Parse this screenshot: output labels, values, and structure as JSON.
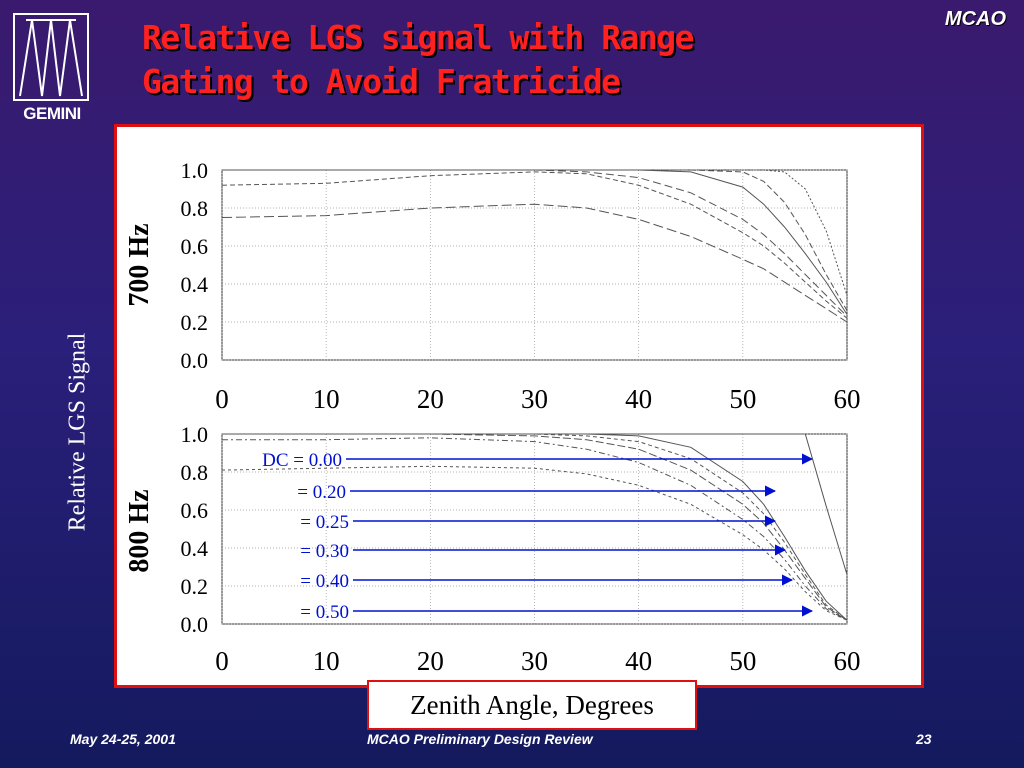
{
  "slide": {
    "title_line1": "Relative LGS signal with Range",
    "title_line2": "Gating to Avoid Fratricide",
    "corner_tag": "MCAO",
    "logo_text": "GEMINI",
    "y_axis_title": "Relative LGS Signal",
    "x_axis_title": "Zenith Angle, Degrees",
    "footer_date": "May 24-25, 2001",
    "footer_title": "MCAO Preliminary Design Review",
    "footer_page": "23"
  },
  "colors": {
    "title": "#ff2020",
    "panel_border": "#e01010",
    "arrow": "#0010d0",
    "curve": "#555555"
  },
  "chart_data": [
    {
      "type": "line",
      "panel_label": "700 Hz",
      "xlim": [
        0,
        60
      ],
      "ylim": [
        0,
        1
      ],
      "x_ticks": [
        "0",
        "10",
        "20",
        "30",
        "40",
        "50",
        "60"
      ],
      "y_ticks": [
        "0.0",
        "0.2",
        "0.4",
        "0.6",
        "0.8",
        "1.0"
      ],
      "grid": true,
      "x": [
        0,
        10,
        20,
        30,
        35,
        40,
        45,
        50,
        52,
        54,
        56,
        58,
        60
      ],
      "series": [
        {
          "values": [
            1,
            1,
            1,
            1,
            1,
            1,
            1,
            1,
            1,
            0.99,
            0.9,
            0.68,
            0.34
          ],
          "dash": "2,2"
        },
        {
          "values": [
            1,
            1,
            1,
            1,
            1,
            1,
            1,
            0.99,
            0.94,
            0.83,
            0.66,
            0.45,
            0.26
          ],
          "dash": "6,3"
        },
        {
          "values": [
            1,
            1,
            1,
            1,
            1,
            1,
            0.99,
            0.91,
            0.82,
            0.7,
            0.56,
            0.41,
            0.24
          ],
          "dash": ""
        },
        {
          "values": [
            1,
            1,
            1,
            1,
            0.99,
            0.96,
            0.88,
            0.74,
            0.66,
            0.56,
            0.45,
            0.34,
            0.23
          ],
          "dash": "8,4"
        },
        {
          "values": [
            0.92,
            0.93,
            0.97,
            0.99,
            0.98,
            0.92,
            0.82,
            0.67,
            0.6,
            0.51,
            0.41,
            0.31,
            0.22
          ],
          "dash": "5,3"
        },
        {
          "values": [
            0.75,
            0.76,
            0.8,
            0.82,
            0.8,
            0.74,
            0.65,
            0.53,
            0.48,
            0.41,
            0.34,
            0.27,
            0.2
          ],
          "dash": "10,4"
        }
      ]
    },
    {
      "type": "line",
      "panel_label": "800 Hz",
      "xlim": [
        0,
        60
      ],
      "ylim": [
        0,
        1
      ],
      "x_ticks": [
        "0",
        "10",
        "20",
        "30",
        "40",
        "50",
        "60"
      ],
      "y_ticks": [
        "0.0",
        "0.2",
        "0.4",
        "0.6",
        "0.8",
        "1.0"
      ],
      "grid": true,
      "x": [
        0,
        10,
        20,
        30,
        35,
        40,
        45,
        50,
        52,
        54,
        56,
        58,
        60
      ],
      "series": [
        {
          "name": "DC = 0.00",
          "values": [
            1,
            1,
            1,
            1,
            1,
            1,
            1,
            1,
            1,
            1,
            1,
            0.62,
            0.26
          ],
          "dash": ""
        },
        {
          "name": "= 0.20",
          "values": [
            1,
            1,
            1,
            1,
            1,
            0.99,
            0.93,
            0.75,
            0.63,
            0.46,
            0.28,
            0.12,
            0.02
          ],
          "dash": ""
        },
        {
          "name": "= 0.25",
          "values": [
            1,
            1,
            1,
            1,
            0.99,
            0.96,
            0.87,
            0.69,
            0.58,
            0.43,
            0.26,
            0.1,
            0.02
          ],
          "dash": "4,3"
        },
        {
          "name": "= 0.30",
          "values": [
            1,
            1,
            1,
            0.99,
            0.97,
            0.92,
            0.81,
            0.63,
            0.53,
            0.39,
            0.24,
            0.09,
            0.02
          ],
          "dash": "8,3"
        },
        {
          "name": "= 0.40",
          "values": [
            0.97,
            0.97,
            0.98,
            0.96,
            0.92,
            0.85,
            0.73,
            0.55,
            0.46,
            0.34,
            0.2,
            0.08,
            0.02
          ],
          "dash": "6,3,2,3"
        },
        {
          "name": "= 0.50",
          "values": [
            0.81,
            0.82,
            0.83,
            0.82,
            0.79,
            0.73,
            0.63,
            0.47,
            0.39,
            0.29,
            0.17,
            0.07,
            0.02
          ],
          "dash": "3,3"
        }
      ]
    }
  ]
}
